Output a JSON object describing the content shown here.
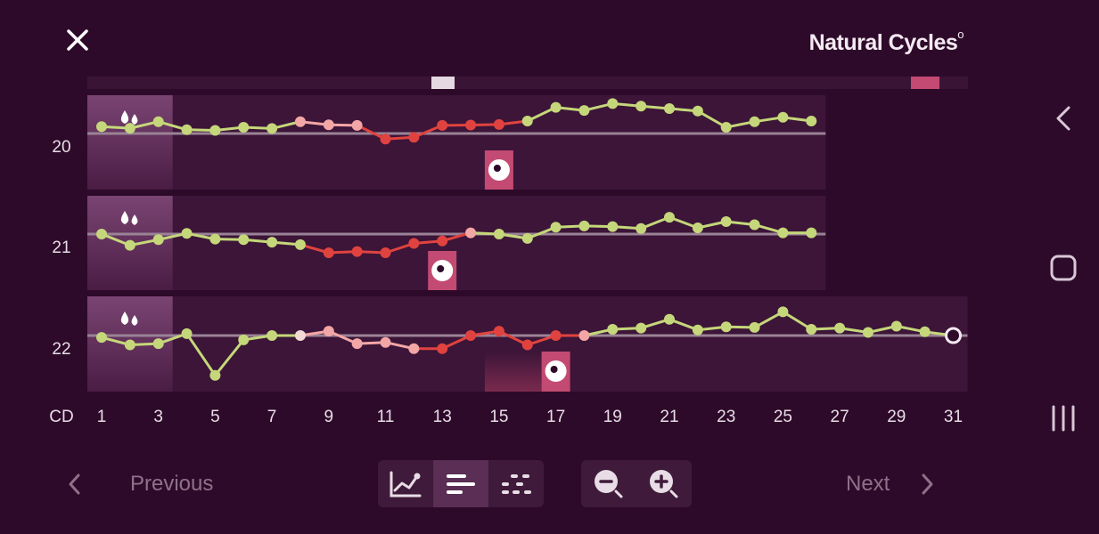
{
  "header": {
    "brand_name": "Natural Cycles",
    "brand_mark": "o",
    "close_icon": "close-icon"
  },
  "system_nav": {
    "icons": [
      "back-chevron-icon",
      "home-square-icon",
      "recents-lines-icon"
    ]
  },
  "chart_data": {
    "type": "line",
    "x_axis_label": "CD",
    "x_ticks": [
      "1",
      "3",
      "5",
      "7",
      "9",
      "11",
      "13",
      "15",
      "17",
      "19",
      "21",
      "23",
      "25",
      "27",
      "29",
      "31"
    ],
    "rows": [
      {
        "cycle": "20",
        "days": 26,
        "period_days": [
          1,
          2,
          3
        ],
        "ovulation_day": 15,
        "values": [
          0.55,
          0.42,
          0.95,
          0.3,
          0.25,
          0.5,
          0.4,
          0.95,
          0.7,
          0.65,
          -0.45,
          -0.3,
          0.65,
          0.68,
          0.72,
          1.0,
          2.1,
          1.85,
          2.4,
          2.2,
          2.0,
          1.8,
          0.5,
          0.95,
          1.3,
          1.0
        ],
        "colors": [
          "g",
          "g",
          "g",
          "g",
          "g",
          "g",
          "g",
          "p",
          "p",
          "p",
          "r",
          "r",
          "r",
          "r",
          "r",
          "g",
          "g",
          "g",
          "g",
          "g",
          "g",
          "g",
          "g",
          "g",
          "g",
          "g"
        ]
      },
      {
        "cycle": "21",
        "days": 26,
        "period_days": [
          1,
          2,
          3
        ],
        "ovulation_day": 13,
        "values": [
          0.0,
          -0.9,
          -0.45,
          0.05,
          -0.4,
          -0.45,
          -0.65,
          -0.85,
          -1.5,
          -1.4,
          -1.5,
          -0.75,
          -0.55,
          0.1,
          0.0,
          -0.35,
          0.55,
          0.65,
          0.6,
          0.45,
          1.35,
          0.5,
          1.0,
          0.75,
          0.1,
          0.1
        ],
        "colors": [
          "g",
          "g",
          "g",
          "g",
          "g",
          "g",
          "g",
          "g",
          "r",
          "r",
          "r",
          "r",
          "r",
          "p",
          "g",
          "g",
          "g",
          "g",
          "g",
          "g",
          "g",
          "g",
          "g",
          "g",
          "g",
          "g"
        ]
      },
      {
        "cycle": "22",
        "days": 31,
        "period_days": [
          1,
          2,
          3
        ],
        "ovulation_day": 17,
        "values": [
          -0.15,
          -0.75,
          -0.65,
          0.15,
          -3.2,
          -0.35,
          0.0,
          0.0,
          0.35,
          -0.65,
          -0.55,
          -1.05,
          -1.05,
          0.0,
          0.35,
          -0.75,
          0.0,
          0.0,
          0.5,
          0.6,
          1.3,
          0.45,
          0.7,
          0.65,
          1.9,
          0.5,
          0.6,
          0.25,
          0.75,
          0.3,
          0.0
        ],
        "colors": [
          "g",
          "g",
          "g",
          "g",
          "g",
          "g",
          "g",
          "w",
          "p",
          "p",
          "p",
          "p",
          "r",
          "r",
          "r",
          "r",
          "r",
          "p",
          "g",
          "g",
          "g",
          "g",
          "g",
          "g",
          "g",
          "g",
          "g",
          "g",
          "g",
          "g",
          "hollow"
        ]
      }
    ],
    "series_colors": {
      "green": "#c5d77a",
      "red": "#e0433f",
      "pink": "#f3a6a6",
      "white": "#f2d9d6",
      "coverline": "#9a8396"
    }
  },
  "footer": {
    "previous_label": "Previous",
    "next_label": "Next",
    "view_buttons": [
      "line-graph-icon",
      "bars-icon",
      "dots-icon"
    ],
    "zoom_buttons": [
      "zoom-out-icon",
      "zoom-in-icon"
    ]
  },
  "colors": {
    "background": "#2e0a2a",
    "row_background": "#3c1538",
    "period_highlight": "#6e3a66",
    "ovulation_marker": "#c34a72"
  }
}
